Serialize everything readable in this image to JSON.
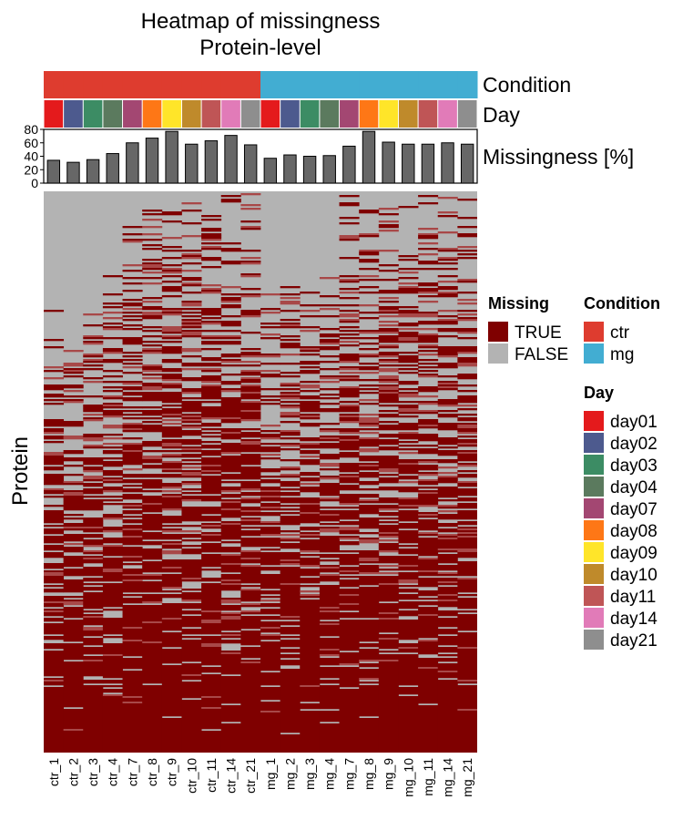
{
  "chart_data": {
    "type": "heatmap",
    "title": "Heatmap of missingness",
    "subtitle": "Protein-level",
    "ylabel": "Protein",
    "samples": [
      "ctr_1",
      "ctr_2",
      "ctr_3",
      "ctr_4",
      "ctr_7",
      "ctr_8",
      "ctr_9",
      "ctr_10",
      "ctr_11",
      "ctr_14",
      "ctr_21",
      "mg_1",
      "mg_2",
      "mg_3",
      "mg_4",
      "mg_7",
      "mg_8",
      "mg_9",
      "mg_10",
      "mg_11",
      "mg_14",
      "mg_21"
    ],
    "condition": [
      "ctr",
      "ctr",
      "ctr",
      "ctr",
      "ctr",
      "ctr",
      "ctr",
      "ctr",
      "ctr",
      "ctr",
      "ctr",
      "mg",
      "mg",
      "mg",
      "mg",
      "mg",
      "mg",
      "mg",
      "mg",
      "mg",
      "mg",
      "mg"
    ],
    "day": [
      "day01",
      "day02",
      "day03",
      "day04",
      "day07",
      "day08",
      "day09",
      "day10",
      "day11",
      "day14",
      "day21",
      "day01",
      "day02",
      "day03",
      "day04",
      "day07",
      "day08",
      "day09",
      "day10",
      "day11",
      "day14",
      "day21"
    ],
    "missingness_percent": [
      34,
      31,
      35,
      44,
      60,
      67,
      77,
      58,
      63,
      71,
      57,
      37,
      42,
      40,
      41,
      55,
      77,
      61,
      58,
      58,
      60,
      58
    ],
    "missingness_axis": {
      "label": "Missingness [%]",
      "ylim": [
        0,
        80
      ],
      "ticks": [
        0,
        20,
        40,
        60,
        80
      ]
    },
    "annotation_labels": {
      "condition": "Condition",
      "day": "Day"
    },
    "legends": {
      "missing": {
        "title": "Missing",
        "items": [
          {
            "label": "TRUE",
            "color": "#7f0000"
          },
          {
            "label": "FALSE",
            "color": "#b3b3b3"
          }
        ]
      },
      "condition": {
        "title": "Condition",
        "items": [
          {
            "label": "ctr",
            "color": "#de3c2f"
          },
          {
            "label": "mg",
            "color": "#42add2"
          }
        ]
      },
      "day": {
        "title": "Day",
        "items": [
          {
            "label": "day01",
            "color": "#e41a1c"
          },
          {
            "label": "day02",
            "color": "#4d5a8e"
          },
          {
            "label": "day03",
            "color": "#3c8c64"
          },
          {
            "label": "day04",
            "color": "#5b7a5e"
          },
          {
            "label": "day07",
            "color": "#a34772"
          },
          {
            "label": "day08",
            "color": "#fe7716"
          },
          {
            "label": "day09",
            "color": "#ffe529"
          },
          {
            "label": "day10",
            "color": "#bf8a2b"
          },
          {
            "label": "day11",
            "color": "#bf5556"
          },
          {
            "label": "day14",
            "color": "#e17bb8"
          },
          {
            "label": "day21",
            "color": "#8e8e8e"
          }
        ]
      }
    },
    "colors": {
      "missing_true": "#7f0000",
      "missing_false": "#b3b3b3",
      "bar_fill": "#676767"
    }
  }
}
